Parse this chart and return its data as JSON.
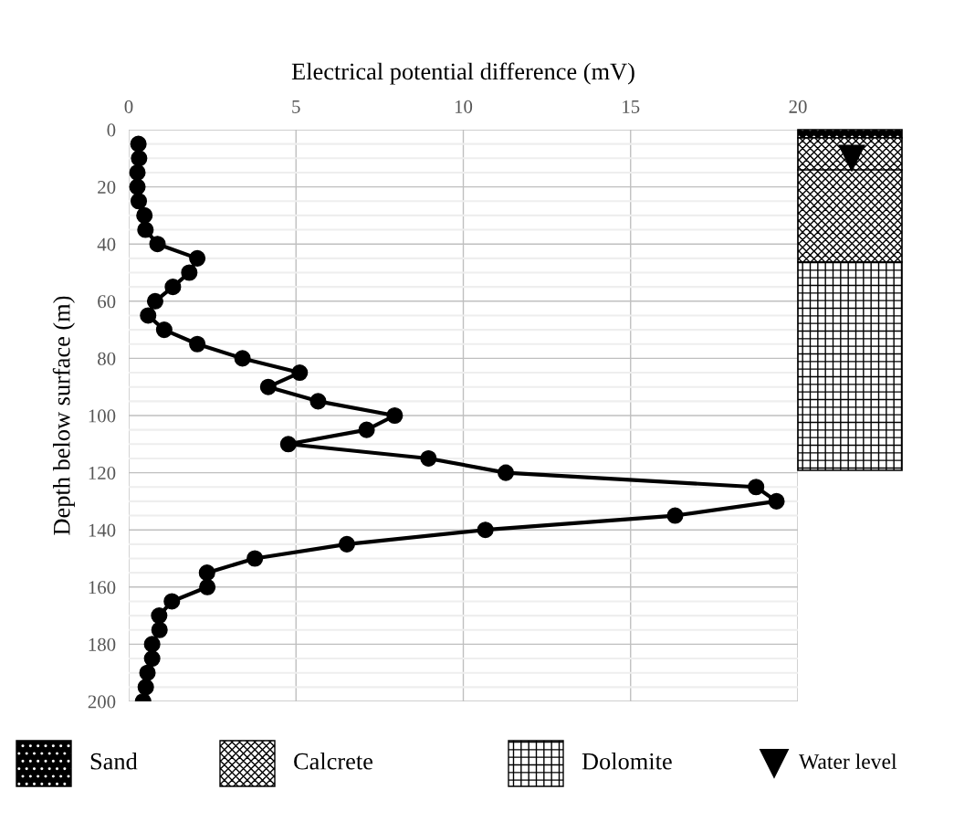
{
  "chart_data": {
    "type": "line",
    "xlabel": "Electrical potential difference (mV)",
    "ylabel": "Depth below surface (m)",
    "x": [
      0.29,
      0.31,
      0.26,
      0.26,
      0.3,
      0.47,
      0.5,
      0.86,
      2.05,
      1.81,
      1.32,
      0.79,
      0.58,
      1.06,
      2.05,
      3.4,
      5.11,
      4.17,
      5.66,
      7.95,
      7.11,
      4.77,
      8.96,
      11.27,
      18.75,
      19.36,
      16.33,
      10.66,
      6.52,
      3.77,
      2.34,
      2.35,
      1.29,
      0.91,
      0.92,
      0.7,
      0.7,
      0.56,
      0.51,
      0.43
    ],
    "series": [
      {
        "color": "#000000",
        "values": [
          5,
          10,
          15,
          20,
          25,
          30,
          35,
          40,
          45,
          50,
          55,
          60,
          65,
          70,
          75,
          80,
          85,
          90,
          95,
          100,
          105,
          110,
          115,
          120,
          125,
          130,
          135,
          140,
          145,
          150,
          155,
          160,
          165,
          170,
          175,
          180,
          185,
          190,
          195,
          200
        ]
      }
    ],
    "xlim": [
      0,
      20
    ],
    "xticks": [
      0,
      5,
      10,
      15,
      20
    ],
    "ylim": [
      200,
      0
    ],
    "yticks": [
      0,
      20,
      40,
      60,
      80,
      100,
      120,
      140,
      160,
      180,
      200
    ],
    "grid": true,
    "marker": "circle",
    "line_style": "solid",
    "annotations": [
      "Sand",
      "Calcrete",
      "Dolomite",
      "Water level"
    ]
  }
}
